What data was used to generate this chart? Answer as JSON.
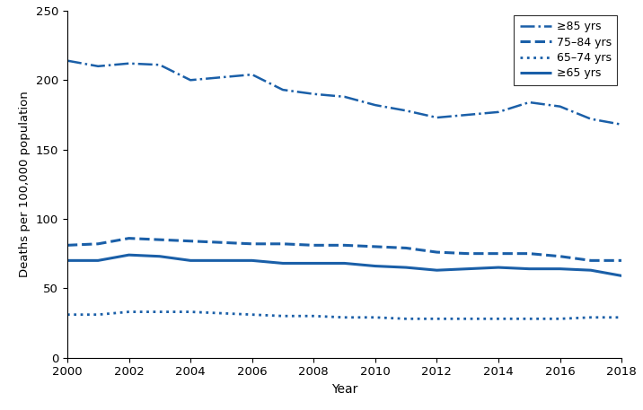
{
  "years": [
    2000,
    2001,
    2002,
    2003,
    2004,
    2005,
    2006,
    2007,
    2008,
    2009,
    2010,
    2011,
    2012,
    2013,
    2014,
    2015,
    2016,
    2017,
    2018
  ],
  "ge85": [
    214,
    210,
    212,
    211,
    200,
    202,
    204,
    193,
    190,
    188,
    182,
    178,
    173,
    175,
    177,
    184,
    181,
    172,
    168
  ],
  "r7584": [
    81,
    82,
    86,
    85,
    84,
    83,
    82,
    82,
    81,
    81,
    80,
    79,
    76,
    75,
    75,
    75,
    73,
    70,
    70
  ],
  "r6574": [
    31,
    31,
    33,
    33,
    33,
    32,
    31,
    30,
    30,
    29,
    29,
    28,
    28,
    28,
    28,
    28,
    28,
    29,
    29
  ],
  "ge65": [
    70,
    70,
    74,
    73,
    70,
    70,
    70,
    68,
    68,
    68,
    66,
    65,
    63,
    64,
    65,
    64,
    64,
    63,
    59
  ],
  "color": "#1a5fa8",
  "xlabel": "Year",
  "ylabel": "Deaths per 100,000 population",
  "ylim": [
    0,
    250
  ],
  "yticks": [
    0,
    50,
    100,
    150,
    200,
    250
  ],
  "xlim": [
    2000,
    2018
  ],
  "xticks": [
    2000,
    2002,
    2004,
    2006,
    2008,
    2010,
    2012,
    2014,
    2016,
    2018
  ],
  "legend_labels": [
    "≥85 yrs",
    "75–84 yrs",
    "65–74 yrs",
    "≥65 yrs"
  ],
  "legend_linestyles": [
    "-.",
    "--",
    ":",
    "-"
  ],
  "legend_linewidths": [
    1.8,
    2.2,
    2.0,
    2.2
  ]
}
